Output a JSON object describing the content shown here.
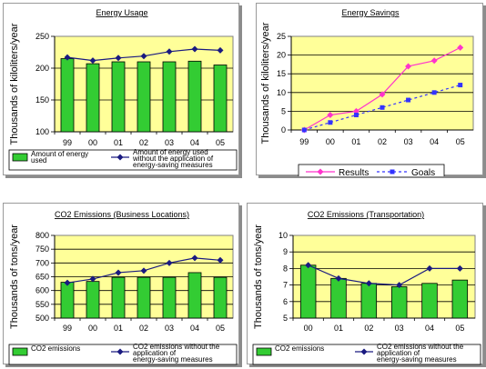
{
  "chart_data": [
    {
      "type": "bar",
      "title": "Energy Usage",
      "ylabel": "Thousands of kiloliters/year",
      "xlabel": "",
      "categories": [
        "99",
        "00",
        "01",
        "02",
        "03",
        "04",
        "05"
      ],
      "ylim": [
        100,
        250
      ],
      "yticks": [
        100,
        150,
        200,
        250
      ],
      "grid": true,
      "legend": "bottom",
      "series": [
        {
          "name": "Amount of energy used",
          "kind": "bar",
          "color": "#33cc33",
          "values": [
            215,
            207,
            210,
            210,
            210,
            211,
            205
          ]
        },
        {
          "name": "Amount of energy used without the application of energy-saving measures",
          "kind": "line",
          "color": "#1a1a80",
          "values": [
            217,
            212,
            216,
            219,
            226,
            230,
            228
          ]
        }
      ]
    },
    {
      "type": "line",
      "title": "Energy Savings",
      "ylabel": "Thousands of kiloliters/year",
      "xlabel": "",
      "categories": [
        "99",
        "00",
        "01",
        "02",
        "03",
        "04",
        "05"
      ],
      "ylim": [
        0,
        25
      ],
      "yticks": [
        0,
        5,
        10,
        15,
        20,
        25
      ],
      "grid": true,
      "legend": "bottom",
      "series": [
        {
          "name": "Results",
          "kind": "line",
          "color": "#ff33cc",
          "values": [
            0,
            4,
            5,
            9.5,
            17,
            18.5,
            22
          ]
        },
        {
          "name": "Goals",
          "kind": "dashed",
          "color": "#3333ff",
          "values": [
            0,
            2,
            4,
            6,
            8,
            10,
            12
          ]
        }
      ]
    },
    {
      "type": "bar",
      "title": "CO2 Emissions (Business Locations)",
      "ylabel": "Thousands of tons/year",
      "xlabel": "",
      "categories": [
        "99",
        "00",
        "01",
        "02",
        "03",
        "04",
        "05"
      ],
      "ylim": [
        500,
        800
      ],
      "yticks": [
        500,
        550,
        600,
        650,
        700,
        750,
        800
      ],
      "grid": true,
      "legend": "bottom",
      "series": [
        {
          "name": "CO2 emissions",
          "kind": "bar",
          "color": "#33cc33",
          "values": [
            630,
            633,
            648,
            648,
            648,
            665,
            648
          ]
        },
        {
          "name": "CO2 emissions without the application of energy-saving measures",
          "kind": "line",
          "color": "#1a1a80",
          "values": [
            628,
            642,
            665,
            672,
            700,
            718,
            710
          ]
        }
      ]
    },
    {
      "type": "bar",
      "title": "CO2 Emissions (Transportation)",
      "ylabel": "Thousands of tons/year",
      "xlabel": "",
      "categories": [
        "00",
        "01",
        "02",
        "03",
        "04",
        "05"
      ],
      "ylim": [
        5,
        10
      ],
      "yticks": [
        5,
        6,
        7,
        8,
        9,
        10
      ],
      "grid": true,
      "legend": "bottom",
      "series": [
        {
          "name": "CO2 emissions",
          "kind": "bar",
          "color": "#33cc33",
          "values": [
            8.2,
            7.4,
            7.1,
            6.9,
            7.1,
            7.3
          ]
        },
        {
          "name": "CO2 emissions without the application of energy-saving measures",
          "kind": "line",
          "color": "#1a1a80",
          "values": [
            8.2,
            7.4,
            7.1,
            7.0,
            8.0,
            8.0
          ]
        }
      ]
    }
  ]
}
